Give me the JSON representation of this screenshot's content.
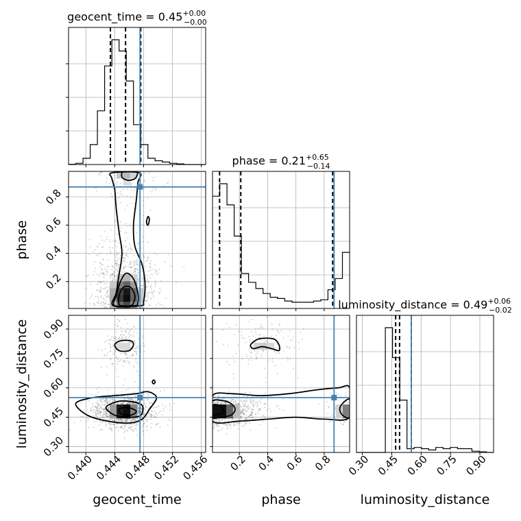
{
  "chart_data": {
    "type": "corner",
    "parameters": [
      "geocent_time",
      "phase",
      "luminosity_distance"
    ],
    "truth": {
      "geocent_time": 0.4475,
      "phase": 0.87,
      "luminosity_distance": 0.55
    },
    "titles": {
      "geocent_time": {
        "name": "geocent_time",
        "value": "0.45",
        "plus": "+0.00",
        "minus": "−0.00"
      },
      "phase": {
        "name": "phase",
        "value": "0.21",
        "plus": "+0.65",
        "minus": "−0.14"
      },
      "luminosity_distance": {
        "name": "luminosity_distance",
        "value": "0.49",
        "plus": "+0.06",
        "minus": "−0.02"
      }
    },
    "axes": {
      "geocent_time": {
        "label": "geocent_time",
        "range": [
          0.4376,
          0.4566
        ],
        "ticks": [
          0.44,
          0.444,
          0.448,
          0.452,
          0.456
        ],
        "tick_labels": [
          "0.440",
          "0.444",
          "0.448",
          "0.452",
          "0.456"
        ]
      },
      "phase": {
        "label": "phase",
        "range": [
          0.01,
          0.98
        ],
        "ticks": [
          0.2,
          0.4,
          0.6,
          0.8
        ],
        "tick_labels": [
          "0.2",
          "0.4",
          "0.6",
          "0.8"
        ]
      },
      "luminosity_distance": {
        "label": "luminosity_distance",
        "range": [
          0.27,
          0.97
        ],
        "ticks": [
          0.3,
          0.45,
          0.6,
          0.75,
          0.9
        ],
        "tick_labels": [
          "0.30",
          "0.45",
          "0.60",
          "0.75",
          "0.90"
        ]
      }
    },
    "histograms": {
      "geocent_time": {
        "edges": [
          0.4376,
          0.4386,
          0.4396,
          0.4406,
          0.4416,
          0.4426,
          0.4436,
          0.4446,
          0.4456,
          0.4466,
          0.4476,
          0.4486,
          0.4496,
          0.4506,
          0.4516,
          0.4526,
          0.4536,
          0.4546,
          0.4556,
          0.4566
        ],
        "counts": [
          0.2,
          1,
          5,
          16,
          43,
          79,
          100,
          91,
          67,
          32,
          16,
          5,
          3,
          2,
          1,
          0.5,
          0,
          0,
          0
        ]
      },
      "phase": {
        "edges": [
          0.01,
          0.0611,
          0.1121,
          0.1632,
          0.2142,
          0.2653,
          0.3163,
          0.3674,
          0.4184,
          0.4695,
          0.5205,
          0.5716,
          0.6226,
          0.6737,
          0.7247,
          0.7758,
          0.8268,
          0.8779,
          0.9289,
          0.98
        ],
        "counts": [
          90,
          100,
          83,
          58,
          28,
          21,
          16,
          12,
          9,
          8,
          6,
          5,
          5,
          5,
          6,
          7,
          15,
          24,
          45
        ]
      },
      "luminosity_distance": {
        "edges": [
          0.27,
          0.3068,
          0.3437,
          0.3805,
          0.4174,
          0.4542,
          0.4911,
          0.5279,
          0.5647,
          0.6016,
          0.6384,
          0.6753,
          0.7121,
          0.7489,
          0.7858,
          0.8226,
          0.8595,
          0.8963,
          0.9332,
          0.97
        ],
        "counts": [
          0,
          0,
          0,
          0,
          100,
          76,
          42,
          3,
          4,
          3,
          2,
          4,
          3,
          4,
          3,
          3,
          1,
          0.5,
          0
        ]
      }
    },
    "quantiles": {
      "geocent_time": [
        0.4434,
        0.4455,
        0.4476
      ],
      "phase": [
        0.06,
        0.21,
        0.86
      ],
      "luminosity_distance": [
        0.47,
        0.49,
        0.55
      ]
    },
    "pairs": [
      {
        "x": "geocent_time",
        "y": "phase",
        "density_peaks": [
          {
            "x": 0.4455,
            "y": 0.1,
            "sx": 0.0013,
            "sy": 0.09,
            "w": 1.0
          },
          {
            "x": 0.4455,
            "y": 0.96,
            "sx": 0.0013,
            "sy": 0.05,
            "w": 0.35
          }
        ],
        "contours": [
          [
            [
              0.4438,
              0.03
            ],
            [
              0.4442,
              0.12
            ],
            [
              0.4446,
              0.25
            ],
            [
              0.445,
              0.4
            ],
            [
              0.4446,
              0.55
            ],
            [
              0.4442,
              0.72
            ],
            [
              0.444,
              0.85
            ],
            [
              0.4436,
              0.93
            ],
            [
              0.4436,
              0.97
            ],
            [
              0.4474,
              0.97
            ],
            [
              0.4472,
              0.9
            ],
            [
              0.447,
              0.78
            ],
            [
              0.4466,
              0.6
            ],
            [
              0.4468,
              0.45
            ],
            [
              0.4478,
              0.32
            ],
            [
              0.4482,
              0.18
            ],
            [
              0.448,
              0.06
            ],
            [
              0.4476,
              0.03
            ]
          ],
          [
            [
              0.444,
              0.03
            ],
            [
              0.4442,
              0.1
            ],
            [
              0.4448,
              0.2
            ],
            [
              0.4456,
              0.26
            ],
            [
              0.4466,
              0.22
            ],
            [
              0.4472,
              0.12
            ],
            [
              0.4472,
              0.05
            ],
            [
              0.4468,
              0.03
            ]
          ],
          [
            [
              0.4446,
              0.04
            ],
            [
              0.4446,
              0.1
            ],
            [
              0.4452,
              0.16
            ],
            [
              0.4462,
              0.16
            ],
            [
              0.4468,
              0.1
            ],
            [
              0.4466,
              0.05
            ],
            [
              0.4462,
              0.03
            ],
            [
              0.445,
              0.03
            ]
          ],
          [
            [
              0.445,
              0.94
            ],
            [
              0.4452,
              0.98
            ],
            [
              0.447,
              0.98
            ],
            [
              0.447,
              0.94
            ],
            [
              0.4464,
              0.92
            ],
            [
              0.4456,
              0.92
            ]
          ],
          [
            [
              0.4484,
              0.62
            ],
            [
              0.4486,
              0.66
            ],
            [
              0.4488,
              0.64
            ],
            [
              0.4486,
              0.6
            ]
          ]
        ]
      },
      {
        "x": "geocent_time",
        "y": "luminosity_distance",
        "density_peaks": [
          {
            "x": 0.4453,
            "y": 0.48,
            "sx": 0.0012,
            "sy": 0.018,
            "w": 1.0
          },
          {
            "x": 0.4452,
            "y": 0.81,
            "sx": 0.0008,
            "sy": 0.025,
            "w": 0.15
          }
        ],
        "contours": [
          [
            [
              0.4386,
              0.52
            ],
            [
              0.441,
              0.55
            ],
            [
              0.444,
              0.56
            ],
            [
              0.447,
              0.57
            ],
            [
              0.4486,
              0.58
            ],
            [
              0.4498,
              0.55
            ],
            [
              0.4488,
              0.49
            ],
            [
              0.4478,
              0.44
            ],
            [
              0.446,
              0.42
            ],
            [
              0.443,
              0.43
            ],
            [
              0.4402,
              0.46
            ]
          ],
          [
            [
              0.4428,
              0.5
            ],
            [
              0.4444,
              0.53
            ],
            [
              0.4462,
              0.53
            ],
            [
              0.4478,
              0.51
            ],
            [
              0.4476,
              0.46
            ],
            [
              0.446,
              0.45
            ],
            [
              0.444,
              0.46
            ]
          ],
          [
            [
              0.4446,
              0.49
            ],
            [
              0.4458,
              0.5
            ],
            [
              0.447,
              0.48
            ],
            [
              0.4462,
              0.46
            ],
            [
              0.445,
              0.465
            ]
          ],
          [
            [
              0.444,
              0.82
            ],
            [
              0.4448,
              0.84
            ],
            [
              0.4462,
              0.84
            ],
            [
              0.4466,
              0.82
            ],
            [
              0.446,
              0.79
            ],
            [
              0.4446,
              0.79
            ]
          ],
          [
            [
              0.4492,
              0.63
            ],
            [
              0.4494,
              0.64
            ],
            [
              0.4496,
              0.63
            ],
            [
              0.4494,
              0.62
            ]
          ]
        ]
      },
      {
        "x": "phase",
        "y": "luminosity_distance",
        "density_peaks": [
          {
            "x": 0.06,
            "y": 0.48,
            "sx": 0.08,
            "sy": 0.016,
            "w": 1.0
          },
          {
            "x": 0.96,
            "y": 0.48,
            "sx": 0.04,
            "sy": 0.018,
            "w": 0.5
          },
          {
            "x": 0.37,
            "y": 0.82,
            "sx": 0.08,
            "sy": 0.03,
            "w": 0.15
          }
        ],
        "contours": [
          [
            [
              0.01,
              0.56
            ],
            [
              0.15,
              0.57
            ],
            [
              0.35,
              0.56
            ],
            [
              0.55,
              0.57
            ],
            [
              0.75,
              0.59
            ],
            [
              0.9,
              0.6
            ],
            [
              0.98,
              0.6
            ],
            [
              0.98,
              0.45
            ],
            [
              0.8,
              0.44
            ],
            [
              0.6,
              0.45
            ],
            [
              0.4,
              0.44
            ],
            [
              0.2,
              0.43
            ],
            [
              0.01,
              0.43
            ]
          ],
          [
            [
              0.01,
              0.53
            ],
            [
              0.08,
              0.535
            ],
            [
              0.14,
              0.52
            ],
            [
              0.17,
              0.49
            ],
            [
              0.14,
              0.46
            ],
            [
              0.06,
              0.45
            ],
            [
              0.01,
              0.45
            ]
          ],
          [
            [
              0.01,
              0.51
            ],
            [
              0.06,
              0.51
            ],
            [
              0.09,
              0.48
            ],
            [
              0.06,
              0.465
            ],
            [
              0.01,
              0.465
            ]
          ],
          [
            [
              0.98,
              0.54
            ],
            [
              0.93,
              0.52
            ],
            [
              0.91,
              0.49
            ],
            [
              0.93,
              0.46
            ],
            [
              0.98,
              0.45
            ]
          ],
          [
            [
              0.28,
              0.82
            ],
            [
              0.34,
              0.85
            ],
            [
              0.44,
              0.85
            ],
            [
              0.48,
              0.82
            ],
            [
              0.48,
              0.79
            ],
            [
              0.43,
              0.8
            ],
            [
              0.36,
              0.81
            ],
            [
              0.3,
              0.8
            ]
          ]
        ]
      }
    ]
  }
}
